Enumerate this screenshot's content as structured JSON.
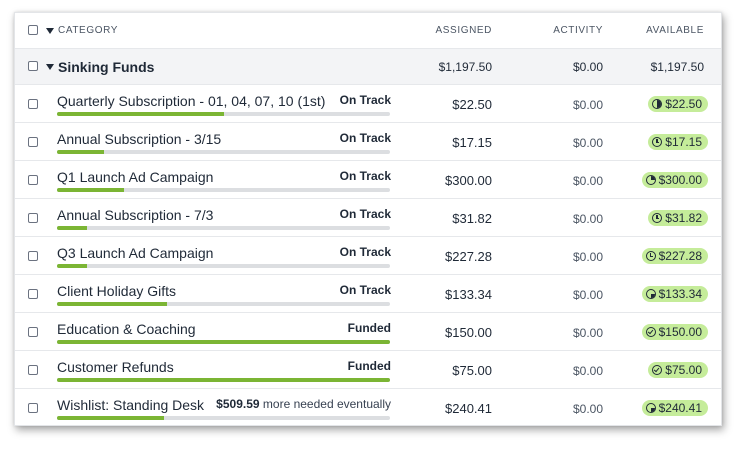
{
  "header": {
    "category_label": "CATEGORY",
    "assigned_label": "ASSIGNED",
    "activity_label": "ACTIVITY",
    "available_label": "AVAILABLE"
  },
  "group": {
    "name": "Sinking Funds",
    "assigned": "$1,197.50",
    "activity": "$0.00",
    "available": "$1,197.50"
  },
  "rows": [
    {
      "name": "Quarterly Subscription - 01, 04, 07, 10 (1st)",
      "status": "On Track",
      "assigned": "$22.50",
      "activity": "$0.00",
      "available": "$22.50",
      "icon": "half-circle-icon",
      "progress": 0.5
    },
    {
      "name": "Annual Subscription - 3/15",
      "status": "On Track",
      "assigned": "$17.15",
      "activity": "$0.00",
      "available": "$17.15",
      "icon": "clock-icon",
      "progress": 0.14
    },
    {
      "name": "Q1 Launch Ad Campaign",
      "status": "On Track",
      "assigned": "$300.00",
      "activity": "$0.00",
      "available": "$300.00",
      "icon": "pie-wedge-icon",
      "progress": 0.2
    },
    {
      "name": "Annual Subscription - 7/3",
      "status": "On Track",
      "assigned": "$31.82",
      "activity": "$0.00",
      "available": "$31.82",
      "icon": "clock-icon",
      "progress": 0.09
    },
    {
      "name": "Q3 Launch Ad Campaign",
      "status": "On Track",
      "assigned": "$227.28",
      "activity": "$0.00",
      "available": "$227.28",
      "icon": "clock-icon",
      "progress": 0.09
    },
    {
      "name": "Client Holiday Gifts",
      "status": "On Track",
      "assigned": "$133.34",
      "activity": "$0.00",
      "available": "$133.34",
      "icon": "pie-quarter-icon",
      "progress": 0.33
    },
    {
      "name": "Education & Coaching",
      "status": "Funded",
      "assigned": "$150.00",
      "activity": "$0.00",
      "available": "$150.00",
      "icon": "check-circle-icon",
      "progress": 1.0
    },
    {
      "name": "Customer Refunds",
      "status": "Funded",
      "assigned": "$75.00",
      "activity": "$0.00",
      "available": "$75.00",
      "icon": "check-circle-icon",
      "progress": 1.0
    },
    {
      "name": "Wishlist: Standing Desk",
      "status": "$509.59",
      "status_suffix": "more needed eventually",
      "assigned": "$240.41",
      "activity": "$0.00",
      "available": "$240.41",
      "icon": "pie-quarter-icon",
      "progress": 0.32
    }
  ],
  "colors": {
    "progress_fill": "#7bb534",
    "available_pill": "#c5ec9a",
    "group_background": "#f3f4f6"
  }
}
